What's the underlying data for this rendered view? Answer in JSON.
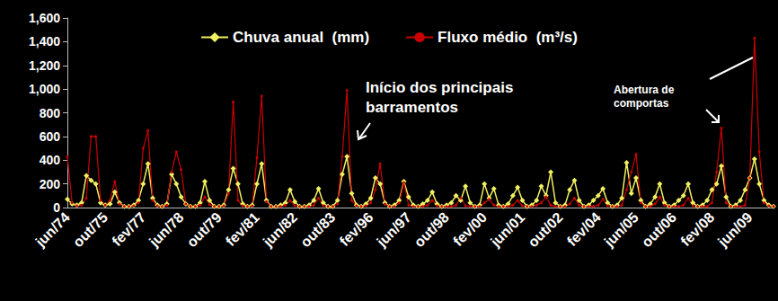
{
  "chart_data": {
    "type": "line",
    "categories": [
      "jun/74",
      null,
      null,
      null,
      null,
      null,
      null,
      null,
      "out/75",
      null,
      null,
      null,
      null,
      null,
      null,
      null,
      "fev/77",
      null,
      null,
      null,
      null,
      null,
      null,
      null,
      "jun/78",
      null,
      null,
      null,
      null,
      null,
      null,
      null,
      "out/79",
      null,
      null,
      null,
      null,
      null,
      null,
      null,
      "fev/81",
      null,
      null,
      null,
      null,
      null,
      null,
      null,
      "jun/82",
      null,
      null,
      null,
      null,
      null,
      null,
      null,
      "out/83",
      null,
      null,
      null,
      null,
      null,
      null,
      null,
      "fev/96",
      null,
      null,
      null,
      null,
      null,
      null,
      null,
      "jun/97",
      null,
      null,
      null,
      null,
      null,
      null,
      null,
      "out/98",
      null,
      null,
      null,
      null,
      null,
      null,
      null,
      "fev/00",
      null,
      null,
      null,
      null,
      null,
      null,
      null,
      "jun/01",
      null,
      null,
      null,
      null,
      null,
      null,
      null,
      "out/02",
      null,
      null,
      null,
      null,
      null,
      null,
      null,
      "fev/04",
      null,
      null,
      null,
      null,
      null,
      null,
      null,
      "jun/05",
      null,
      null,
      null,
      null,
      null,
      null,
      null,
      "out/06",
      null,
      null,
      null,
      null,
      null,
      null,
      null,
      "fev/08",
      null,
      null,
      null,
      null,
      null,
      null,
      null,
      "jun/09",
      null,
      null,
      null,
      null,
      null
    ],
    "series": [
      {
        "name": "Chuva anual  (mm)",
        "color": "#f0f060",
        "marker": "diamond",
        "values": [
          70,
          30,
          20,
          40,
          270,
          230,
          200,
          40,
          20,
          30,
          130,
          40,
          10,
          10,
          20,
          60,
          200,
          370,
          80,
          20,
          10,
          30,
          280,
          200,
          90,
          30,
          10,
          10,
          40,
          220,
          60,
          10,
          10,
          20,
          150,
          330,
          200,
          30,
          10,
          20,
          200,
          370,
          60,
          10,
          10,
          20,
          40,
          150,
          50,
          10,
          10,
          20,
          60,
          160,
          40,
          10,
          10,
          60,
          280,
          430,
          120,
          20,
          10,
          30,
          80,
          250,
          200,
          40,
          10,
          20,
          60,
          220,
          90,
          20,
          10,
          30,
          60,
          130,
          30,
          10,
          20,
          40,
          100,
          60,
          180,
          40,
          10,
          20,
          200,
          80,
          160,
          20,
          10,
          30,
          100,
          170,
          60,
          10,
          20,
          60,
          180,
          100,
          300,
          40,
          10,
          20,
          150,
          230,
          60,
          10,
          20,
          60,
          100,
          160,
          40,
          10,
          20,
          80,
          380,
          120,
          250,
          60,
          10,
          30,
          90,
          200,
          40,
          10,
          20,
          60,
          100,
          200,
          40,
          10,
          20,
          60,
          150,
          200,
          350,
          90,
          10,
          20,
          60,
          150,
          250,
          410,
          200,
          60,
          20,
          10
        ]
      },
      {
        "name": "Fluxo médio  (m³/s)",
        "color": "#cc0000",
        "marker": "circle",
        "values": [
          430,
          40,
          15,
          20,
          80,
          600,
          600,
          60,
          20,
          60,
          220,
          30,
          10,
          10,
          15,
          40,
          500,
          650,
          60,
          15,
          10,
          20,
          300,
          470,
          320,
          30,
          10,
          10,
          20,
          90,
          25,
          10,
          10,
          15,
          120,
          890,
          60,
          15,
          10,
          15,
          420,
          940,
          50,
          10,
          10,
          10,
          20,
          60,
          15,
          10,
          10,
          10,
          20,
          80,
          15,
          10,
          10,
          30,
          430,
          990,
          60,
          15,
          10,
          15,
          40,
          150,
          370,
          30,
          10,
          10,
          40,
          210,
          20,
          10,
          10,
          10,
          20,
          60,
          15,
          10,
          10,
          10,
          20,
          80,
          15,
          10,
          10,
          10,
          40,
          70,
          20,
          10,
          10,
          10,
          20,
          60,
          15,
          10,
          10,
          20,
          40,
          90,
          20,
          10,
          10,
          10,
          30,
          80,
          20,
          10,
          10,
          10,
          20,
          70,
          15,
          10,
          10,
          20,
          150,
          300,
          450,
          40,
          10,
          10,
          30,
          90,
          20,
          10,
          10,
          10,
          20,
          80,
          15,
          10,
          10,
          10,
          40,
          300,
          670,
          40,
          10,
          10,
          10,
          20,
          250,
          1430,
          470,
          40,
          15,
          10
        ]
      }
    ],
    "ylim": [
      0,
      1600
    ],
    "yticks": [
      0,
      200,
      400,
      600,
      800,
      1000,
      1200,
      1400,
      1600
    ],
    "grid": false,
    "legend": "top",
    "annotations": [
      {
        "text": "Início dos principais\nbarramentos"
      },
      {
        "text": "Abertura de\ncomportas"
      }
    ]
  }
}
